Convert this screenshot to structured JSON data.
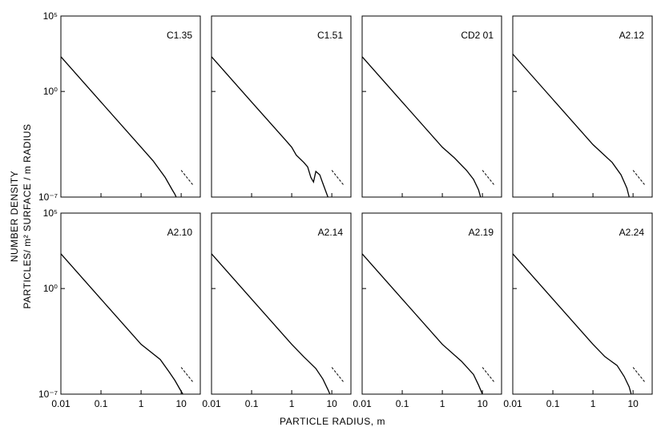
{
  "figure": {
    "xlabel": "PARTICLE RADIUS, m",
    "ylabel_line1": "NUMBER DENSITY",
    "ylabel_line2": "PARTICLES/ m² SURFACE / m RADIUS"
  },
  "chart_data": {
    "type": "line",
    "x_scale": "log",
    "y_scale": "log",
    "xlim": [
      0.01,
      30
    ],
    "ylim": [
      1e-07,
      100000.0
    ],
    "x_ticks": [
      "0.01",
      "0.1",
      "1",
      "10"
    ],
    "y_ticks": [
      "10⁵",
      "10⁰",
      "10⁻⁷"
    ],
    "panels": [
      {
        "title": "C1.35",
        "series": [
          {
            "x": [
              0.01,
              0.1,
              1,
              2,
              4,
              6,
              7,
              7.5
            ],
            "y": [
              200,
              0.2,
              0.0002,
              2.5e-05,
              2e-06,
              3e-07,
              1.5e-07,
              1e-07
            ]
          }
        ],
        "reference": {
          "x": [
            10,
            20
          ],
          "y": [
            6e-06,
            6e-07
          ]
        }
      },
      {
        "title": "C1.51",
        "series": [
          {
            "x": [
              0.01,
              0.1,
              0.7,
              1,
              1.3,
              2,
              2.5,
              3,
              3.5,
              4,
              5,
              6,
              8
            ],
            "y": [
              200,
              0.2,
              0.0006,
              0.0002,
              6e-05,
              2e-05,
              1e-05,
              2e-06,
              1e-06,
              5e-06,
              3e-06,
              8e-07,
              1e-07
            ]
          }
        ],
        "reference": {
          "x": [
            10,
            20
          ],
          "y": [
            6e-06,
            6e-07
          ]
        }
      },
      {
        "title": "CD2 01",
        "series": [
          {
            "x": [
              0.01,
              0.1,
              1,
              2,
              4,
              6,
              8,
              9
            ],
            "y": [
              200,
              0.2,
              0.0002,
              4e-05,
              6e-06,
              1.5e-06,
              3e-07,
              1e-07
            ]
          }
        ],
        "reference": {
          "x": [
            10,
            20
          ],
          "y": [
            6e-06,
            6e-07
          ]
        }
      },
      {
        "title": "A2.12",
        "series": [
          {
            "x": [
              0.01,
              0.1,
              1,
              3,
              5,
              7,
              8
            ],
            "y": [
              300,
              0.3,
              0.0003,
              2e-05,
              3e-06,
              4e-07,
              1e-07
            ]
          }
        ],
        "reference": {
          "x": [
            10,
            20
          ],
          "y": [
            6e-06,
            6e-07
          ]
        }
      },
      {
        "title": "A2.10",
        "series": [
          {
            "x": [
              0.01,
              0.1,
              1,
              3,
              5,
              7,
              9,
              11
            ],
            "y": [
              200,
              0.2,
              0.0002,
              2e-05,
              3e-06,
              8e-07,
              2.5e-07,
              1e-07
            ]
          }
        ],
        "reference": {
          "x": [
            10,
            20
          ],
          "y": [
            6e-06,
            6e-07
          ]
        }
      },
      {
        "title": "A2.14",
        "series": [
          {
            "x": [
              0.01,
              0.1,
              1,
              2,
              4,
              6,
              8,
              9
            ],
            "y": [
              200,
              0.2,
              0.0002,
              3e-05,
              5e-06,
              1e-06,
              2e-07,
              1e-07
            ]
          }
        ],
        "reference": {
          "x": [
            10,
            20
          ],
          "y": [
            6e-06,
            6e-07
          ]
        }
      },
      {
        "title": "A2.19",
        "series": [
          {
            "x": [
              0.01,
              0.1,
              1,
              3,
              6,
              8,
              10
            ],
            "y": [
              200,
              0.2,
              0.0002,
              1.5e-05,
              2e-06,
              4e-07,
              1e-07
            ]
          }
        ],
        "reference": {
          "x": [
            10,
            20
          ],
          "y": [
            6e-06,
            6e-07
          ]
        }
      },
      {
        "title": "A2.24",
        "series": [
          {
            "x": [
              0.01,
              0.1,
              1,
              2,
              4,
              6,
              8,
              9
            ],
            "y": [
              200,
              0.2,
              0.0002,
              3e-05,
              8e-06,
              1.5e-06,
              3e-07,
              1e-07
            ]
          }
        ],
        "reference": {
          "x": [
            10,
            20
          ],
          "y": [
            6e-06,
            6e-07
          ]
        }
      }
    ]
  }
}
